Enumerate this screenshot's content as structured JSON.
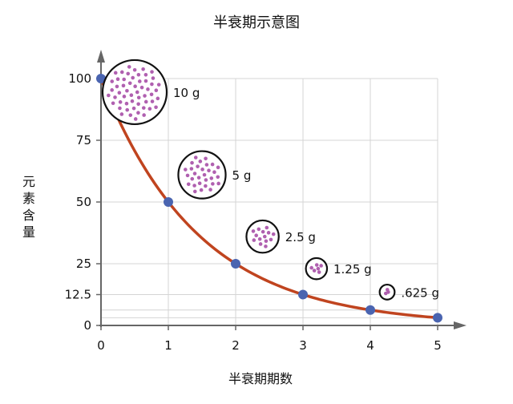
{
  "chart_data": {
    "type": "line",
    "title": "半衰期示意图",
    "xlabel": "半衰期期数",
    "ylabel": "元素含量",
    "x": [
      0,
      1,
      2,
      3,
      4,
      5
    ],
    "values": [
      100,
      50,
      25,
      12.5,
      6.25,
      3.125
    ],
    "xticks": [
      "0",
      "1",
      "2",
      "3",
      "4",
      "5"
    ],
    "yticks": [
      {
        "value": 0,
        "label": "0"
      },
      {
        "value": 12.5,
        "label": "12.5"
      },
      {
        "value": 25,
        "label": "25"
      },
      {
        "value": 50,
        "label": "50"
      },
      {
        "value": 75,
        "label": "75"
      },
      {
        "value": 100,
        "label": "100"
      }
    ],
    "extra_gridlines": [
      3.125,
      6.25
    ],
    "xlim": [
      0,
      5
    ],
    "ylim": [
      0,
      100
    ],
    "grid": true,
    "annotations": [
      {
        "label": "10 g",
        "x": 0.5,
        "y": 94.5,
        "dots": 55
      },
      {
        "label": "5 g",
        "x": 1.5,
        "y": 61.0,
        "dots": 30
      },
      {
        "label": "2.5 g",
        "x": 2.4,
        "y": 36.0,
        "dots": 14
      },
      {
        "label": "1.25 g",
        "x": 3.2,
        "y": 23.0,
        "dots": 6
      },
      {
        "label": ".625 g",
        "x": 4.25,
        "y": 13.5,
        "dots": 3
      }
    ],
    "colors": {
      "curve": "#c0441f",
      "point": "#4a64b0",
      "dot": "#b060b0",
      "grid": "#d4d4d4",
      "axis": "#666666",
      "circle": "#111111"
    }
  }
}
